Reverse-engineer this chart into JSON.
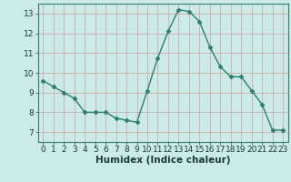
{
  "x": [
    0,
    1,
    2,
    3,
    4,
    5,
    6,
    7,
    8,
    9,
    10,
    11,
    12,
    13,
    14,
    15,
    16,
    17,
    18,
    19,
    20,
    21,
    22,
    23
  ],
  "y": [
    9.6,
    9.3,
    9.0,
    8.7,
    8.0,
    8.0,
    8.0,
    7.7,
    7.6,
    7.5,
    9.1,
    10.75,
    12.1,
    13.2,
    13.1,
    12.6,
    11.3,
    10.3,
    9.8,
    9.8,
    9.1,
    8.4,
    7.1,
    7.1
  ],
  "line_color": "#2e7d6e",
  "marker": "D",
  "markersize": 2.5,
  "linewidth": 1.0,
  "bg_color": "#cceae7",
  "grid_color_major": "#b8a8a8",
  "grid_color_minor": "#d8c8c8",
  "xlabel": "Humidex (Indice chaleur)",
  "ylim": [
    6.5,
    13.5
  ],
  "xlim": [
    -0.5,
    23.5
  ],
  "yticks": [
    7,
    8,
    9,
    10,
    11,
    12,
    13
  ],
  "xticks": [
    0,
    1,
    2,
    3,
    4,
    5,
    6,
    7,
    8,
    9,
    10,
    11,
    12,
    13,
    14,
    15,
    16,
    17,
    18,
    19,
    20,
    21,
    22,
    23
  ],
  "xlabel_fontsize": 7.5,
  "tick_fontsize": 6.5,
  "tick_color": "#1a3a3a",
  "spine_color": "#2e7d6e"
}
